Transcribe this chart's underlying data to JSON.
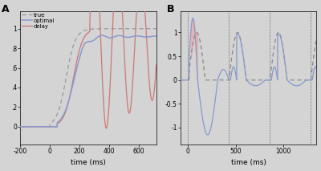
{
  "panel_A": {
    "xlim": [
      -200,
      720
    ],
    "ylim": [
      -0.18,
      1.18
    ],
    "xlabel": "time (ms)",
    "yticks": [
      0.0,
      0.2,
      0.4,
      0.6,
      0.8,
      1.0
    ],
    "yticklabels": [
      "0",
      ".2",
      ".4",
      ".6",
      ".8",
      "1"
    ],
    "xticks": [
      -200,
      0,
      200,
      400,
      600
    ],
    "bg_color": "#d4d4d4",
    "color_true": "#999999",
    "color_optimal": "#8899cc",
    "color_delay": "#cc7777"
  },
  "panel_B": {
    "xlim": [
      -80,
      1350
    ],
    "ylim": [
      -1.35,
      1.45
    ],
    "xlabel": "time (ms)",
    "yticks": [
      -1.0,
      -0.5,
      0.0,
      0.5,
      1.0
    ],
    "yticklabels": [
      "-1",
      "-0.5",
      "0",
      "0.5",
      "1"
    ],
    "xticks": [
      0,
      500,
      1000
    ],
    "bg_color": "#d4d4d4",
    "color_target": "#888888",
    "color_pursuit": "#8899cc",
    "color_shade": "#e8aaaa"
  },
  "figure_bg": "#d4d4d4"
}
